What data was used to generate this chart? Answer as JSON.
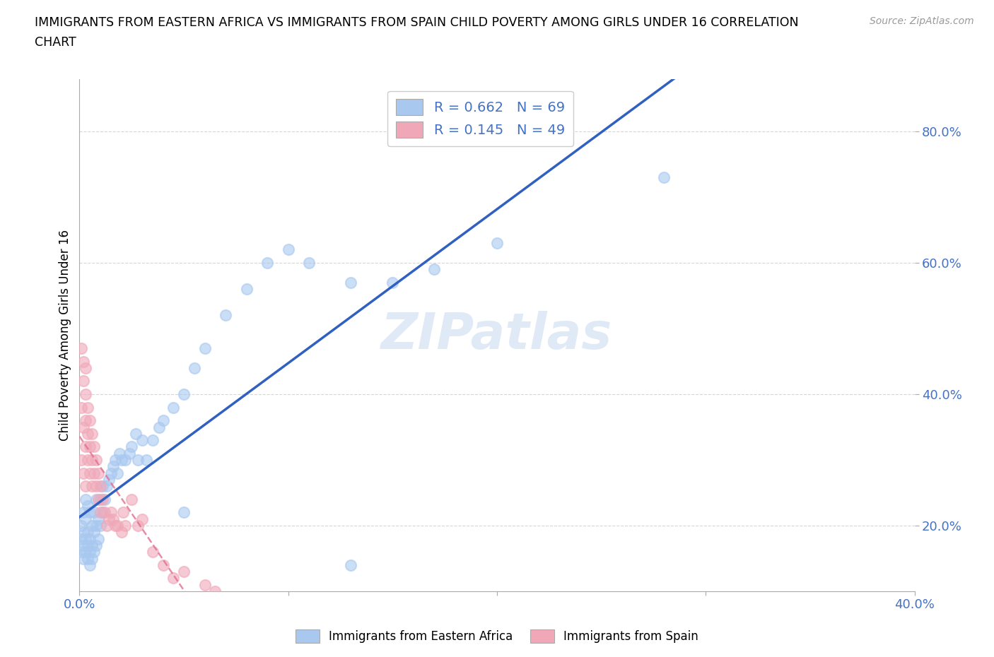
{
  "title_line1": "IMMIGRANTS FROM EASTERN AFRICA VS IMMIGRANTS FROM SPAIN CHILD POVERTY AMONG GIRLS UNDER 16 CORRELATION",
  "title_line2": "CHART",
  "source": "Source: ZipAtlas.com",
  "ylabel": "Child Poverty Among Girls Under 16",
  "xlim": [
    0.0,
    0.4
  ],
  "ylim": [
    0.1,
    0.88
  ],
  "x_ticks": [
    0.0,
    0.1,
    0.2,
    0.3,
    0.4
  ],
  "x_tick_labels": [
    "0.0%",
    "",
    "",
    "",
    "40.0%"
  ],
  "y_ticks": [
    0.2,
    0.4,
    0.6,
    0.8
  ],
  "y_tick_labels": [
    "20.0%",
    "40.0%",
    "60.0%",
    "80.0%"
  ],
  "blue_scatter_color": "#a8c8f0",
  "pink_scatter_color": "#f0a8b8",
  "blue_line_color": "#3060c0",
  "pink_line_color": "#e07090",
  "R_blue": 0.662,
  "N_blue": 69,
  "R_pink": 0.145,
  "N_pink": 49,
  "watermark": "ZIPatlas",
  "legend_label_blue": "Immigrants from Eastern Africa",
  "legend_label_pink": "Immigrants from Spain",
  "blue_x": [
    0.001,
    0.001,
    0.001,
    0.002,
    0.002,
    0.002,
    0.002,
    0.003,
    0.003,
    0.003,
    0.003,
    0.004,
    0.004,
    0.004,
    0.004,
    0.005,
    0.005,
    0.005,
    0.005,
    0.006,
    0.006,
    0.006,
    0.007,
    0.007,
    0.007,
    0.008,
    0.008,
    0.008,
    0.009,
    0.009,
    0.01,
    0.01,
    0.011,
    0.011,
    0.012,
    0.013,
    0.014,
    0.015,
    0.016,
    0.017,
    0.018,
    0.019,
    0.02,
    0.022,
    0.024,
    0.025,
    0.027,
    0.028,
    0.03,
    0.032,
    0.035,
    0.038,
    0.04,
    0.045,
    0.05,
    0.055,
    0.06,
    0.07,
    0.08,
    0.09,
    0.1,
    0.11,
    0.13,
    0.15,
    0.17,
    0.2,
    0.05,
    0.13,
    0.28
  ],
  "blue_y": [
    0.16,
    0.18,
    0.2,
    0.15,
    0.17,
    0.19,
    0.22,
    0.16,
    0.18,
    0.21,
    0.24,
    0.15,
    0.17,
    0.19,
    0.23,
    0.14,
    0.16,
    0.18,
    0.22,
    0.15,
    0.17,
    0.2,
    0.16,
    0.19,
    0.22,
    0.17,
    0.2,
    0.24,
    0.18,
    0.21,
    0.2,
    0.24,
    0.22,
    0.26,
    0.24,
    0.26,
    0.27,
    0.28,
    0.29,
    0.3,
    0.28,
    0.31,
    0.3,
    0.3,
    0.31,
    0.32,
    0.34,
    0.3,
    0.33,
    0.3,
    0.33,
    0.35,
    0.36,
    0.38,
    0.4,
    0.44,
    0.47,
    0.52,
    0.56,
    0.6,
    0.62,
    0.6,
    0.57,
    0.57,
    0.59,
    0.63,
    0.22,
    0.14,
    0.73
  ],
  "pink_x": [
    0.001,
    0.001,
    0.001,
    0.002,
    0.002,
    0.002,
    0.002,
    0.003,
    0.003,
    0.003,
    0.003,
    0.003,
    0.004,
    0.004,
    0.004,
    0.005,
    0.005,
    0.005,
    0.006,
    0.006,
    0.006,
    0.007,
    0.007,
    0.008,
    0.008,
    0.009,
    0.009,
    0.01,
    0.01,
    0.011,
    0.012,
    0.013,
    0.014,
    0.015,
    0.016,
    0.017,
    0.018,
    0.02,
    0.021,
    0.022,
    0.025,
    0.028,
    0.03,
    0.035,
    0.04,
    0.045,
    0.05,
    0.06,
    0.065
  ],
  "pink_y": [
    0.47,
    0.38,
    0.3,
    0.45,
    0.42,
    0.35,
    0.28,
    0.44,
    0.4,
    0.36,
    0.32,
    0.26,
    0.38,
    0.34,
    0.3,
    0.36,
    0.32,
    0.28,
    0.34,
    0.3,
    0.26,
    0.32,
    0.28,
    0.3,
    0.26,
    0.28,
    0.24,
    0.26,
    0.22,
    0.24,
    0.22,
    0.2,
    0.21,
    0.22,
    0.21,
    0.2,
    0.2,
    0.19,
    0.22,
    0.2,
    0.24,
    0.2,
    0.21,
    0.16,
    0.14,
    0.12,
    0.13,
    0.11,
    0.1
  ]
}
